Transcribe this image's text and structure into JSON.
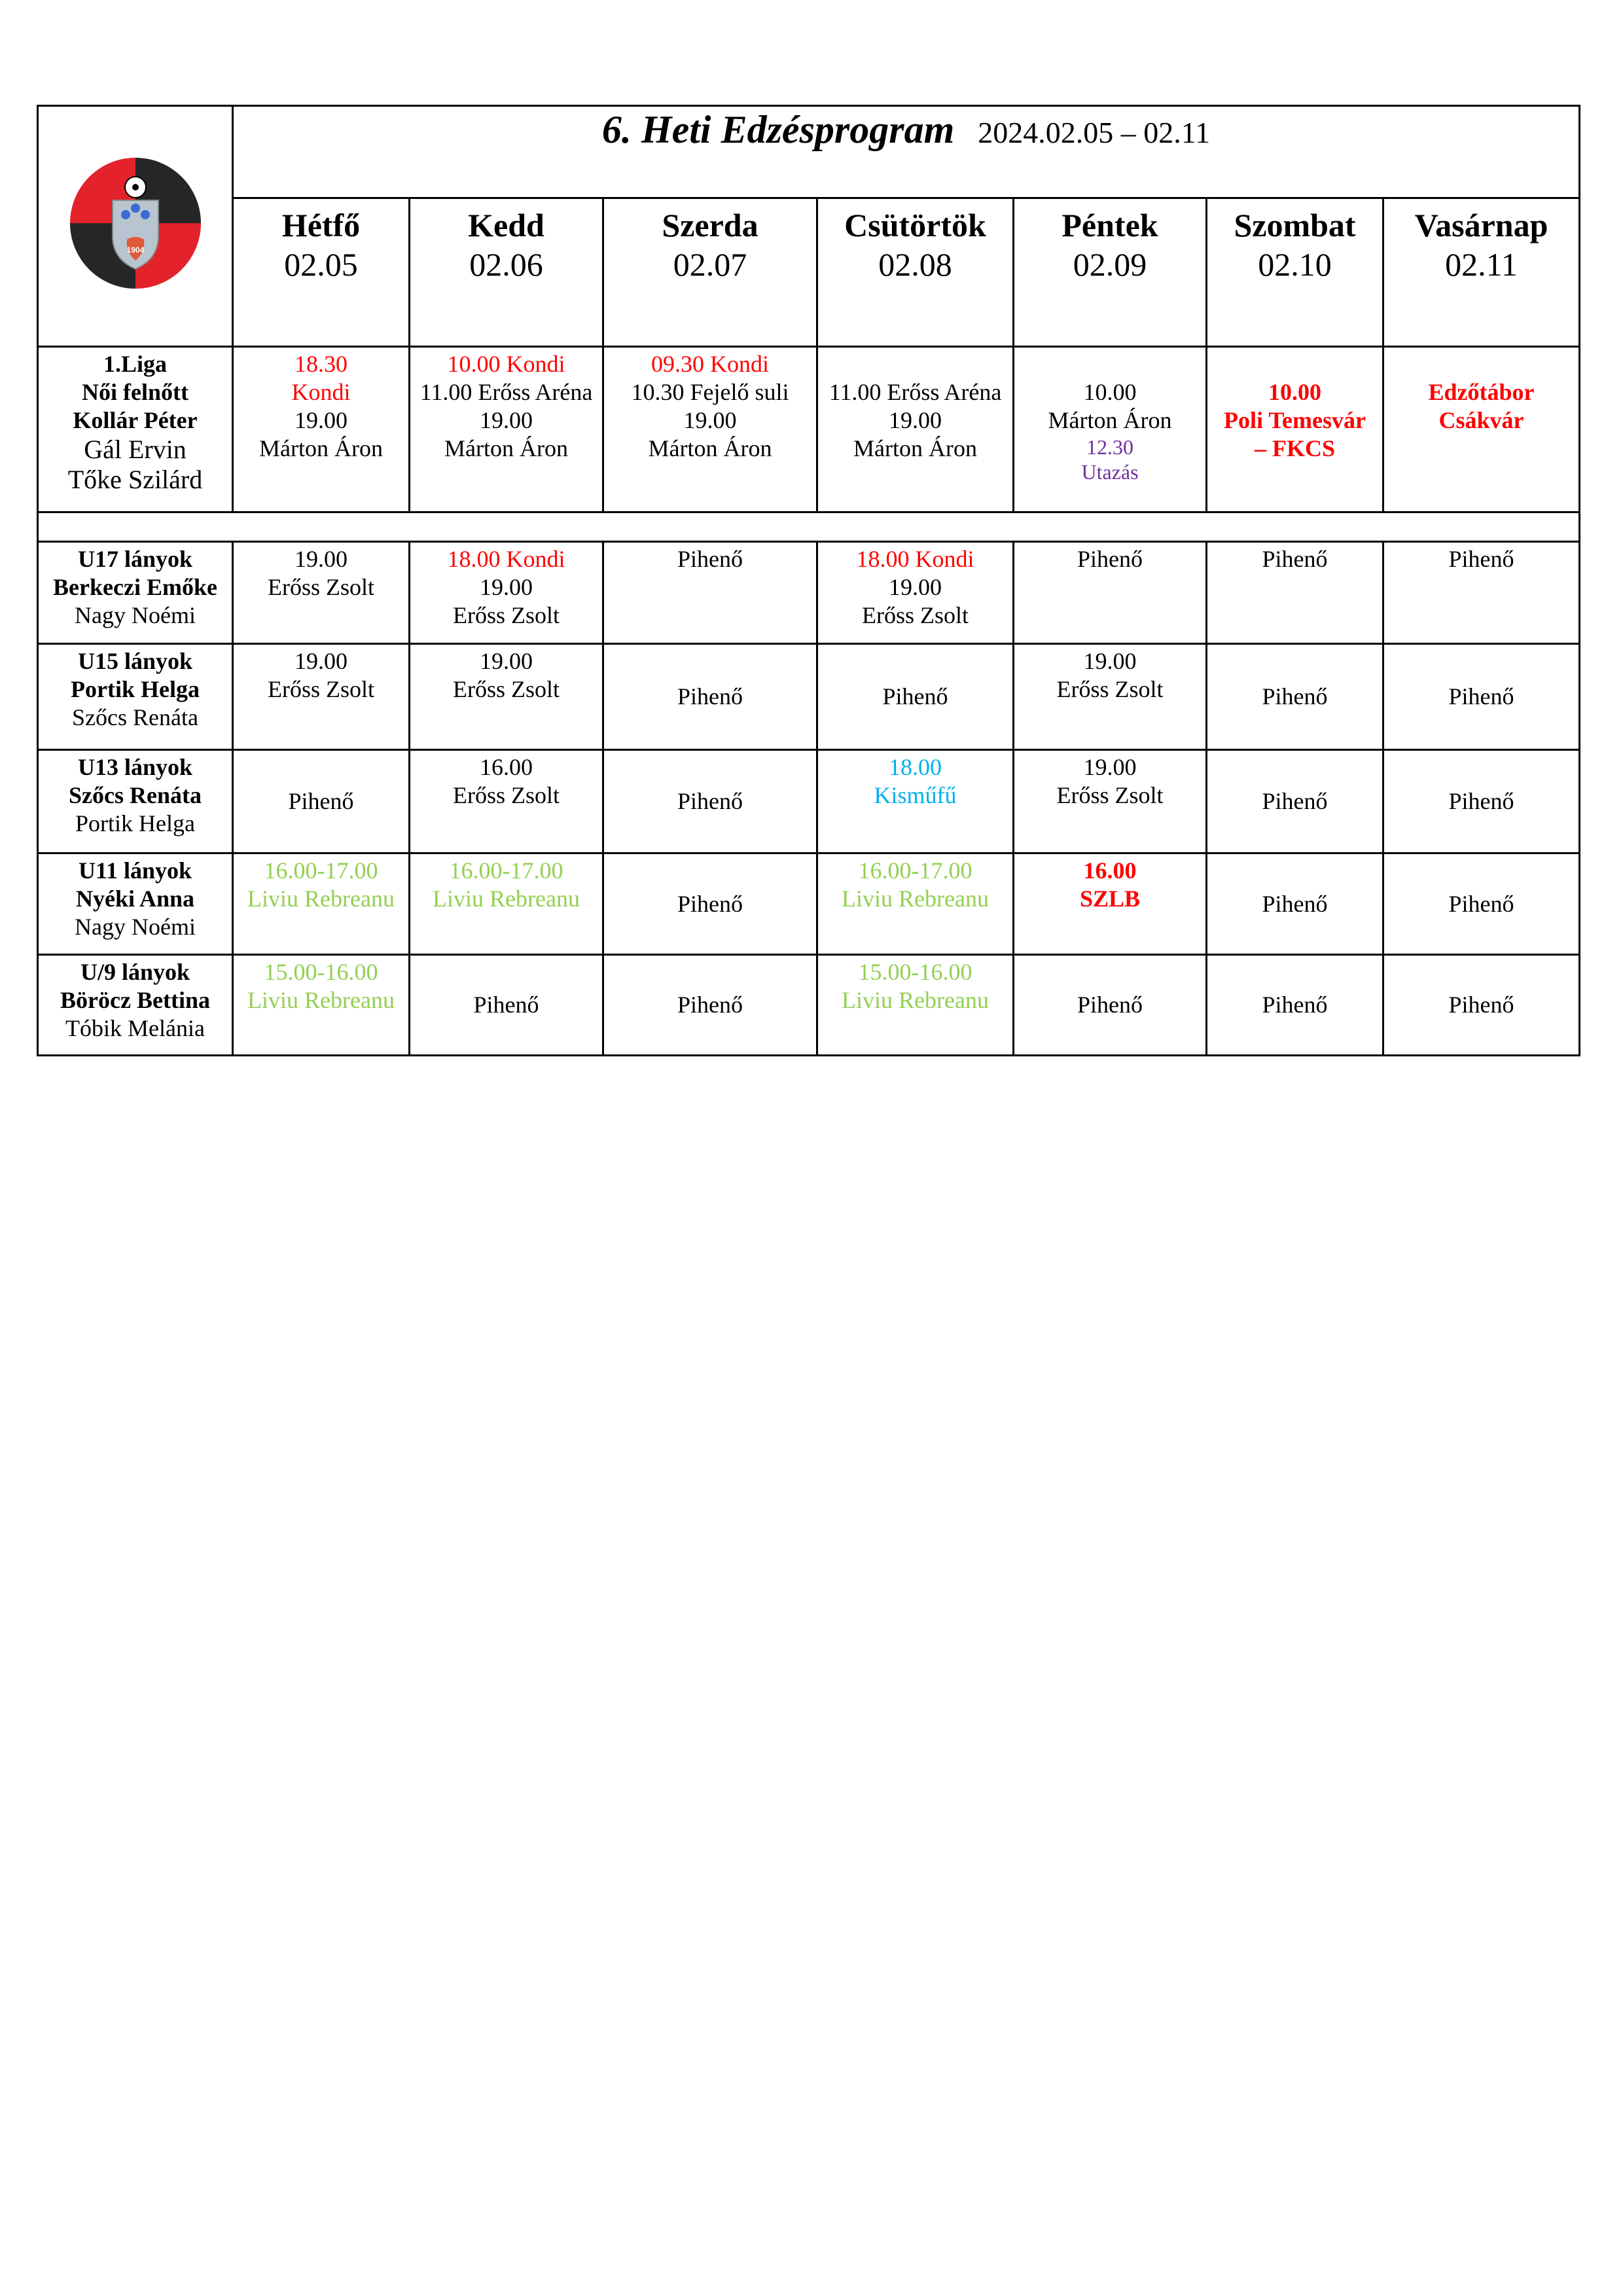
{
  "header": {
    "title": "6. Heti Edzésprogram",
    "date_range": "2024.02.05 – 02.11",
    "logo_text": "FUTBALL KLUB CSÍKSZEREDA 1904 FUTBALL KLUB MIERCUREACIUC"
  },
  "days": [
    {
      "name": "Hétfő",
      "date": "02.05"
    },
    {
      "name": "Kedd",
      "date": "02.06"
    },
    {
      "name": "Szerda",
      "date": "02.07"
    },
    {
      "name": "Csütörtök",
      "date": "02.08"
    },
    {
      "name": "Péntek",
      "date": "02.09"
    },
    {
      "name": "Szombat",
      "date": "02.10"
    },
    {
      "name": "Vasárnap",
      "date": "02.11"
    }
  ],
  "teams": [
    {
      "label": [
        "1.Liga",
        "Női felnőtt",
        "Kollár Péter",
        "Gál Ervin",
        "Tőke Szilárd"
      ],
      "cells": [
        [
          {
            "t": "18.30",
            "c": "red"
          },
          {
            "t": "Kondi",
            "c": "red"
          },
          {
            "t": "19.00"
          },
          {
            "t": "Márton Áron"
          }
        ],
        [
          {
            "t": "10.00 Kondi",
            "c": "red"
          },
          {
            "t": "11.00 Erőss Aréna"
          },
          {
            "t": "19.00"
          },
          {
            "t": "Márton Áron"
          }
        ],
        [
          {
            "t": "09.30 Kondi",
            "c": "red"
          },
          {
            "t": "10.30 Fejelő suli"
          },
          {
            "t": "19.00"
          },
          {
            "t": "Márton Áron"
          }
        ],
        [
          {
            "t": "11.00 Erőss Aréna"
          },
          {
            "t": "19.00"
          },
          {
            "t": "Márton Áron"
          }
        ],
        [
          {
            "t": "10.00"
          },
          {
            "t": "Márton Áron"
          },
          {
            "t": "12.30",
            "c": "purple"
          },
          {
            "t": "Utazás",
            "c": "purple"
          }
        ],
        [
          {
            "t": "10.00",
            "c": "red",
            "b": true
          },
          {
            "t": "Poli Temesvár",
            "c": "red",
            "b": true
          },
          {
            "t": "– FKCS",
            "c": "red",
            "b": true
          }
        ],
        [
          {
            "t": "Edzőtábor",
            "c": "red",
            "b": true
          },
          {
            "t": "Csákvár",
            "c": "red",
            "b": true
          }
        ]
      ]
    },
    {
      "label": [
        "U17 lányok",
        "Berkeczi Emőke",
        "Nagy Noémi"
      ],
      "cells": [
        [
          {
            "t": "19.00"
          },
          {
            "t": "Erőss Zsolt"
          }
        ],
        [
          {
            "t": "18.00 Kondi",
            "c": "red"
          },
          {
            "t": "19.00"
          },
          {
            "t": "Erőss Zsolt"
          }
        ],
        [
          {
            "t": "Pihenő"
          }
        ],
        [
          {
            "t": "18.00 Kondi",
            "c": "red"
          },
          {
            "t": "19.00"
          },
          {
            "t": "Erőss Zsolt"
          }
        ],
        [
          {
            "t": "Pihenő"
          }
        ],
        [
          {
            "t": "Pihenő"
          }
        ],
        [
          {
            "t": "Pihenő"
          }
        ]
      ]
    },
    {
      "label": [
        "U15 lányok",
        "Portik Helga",
        "Szőcs Renáta"
      ],
      "cells": [
        [
          {
            "t": "19.00"
          },
          {
            "t": "Erőss Zsolt"
          }
        ],
        [
          {
            "t": "19.00"
          },
          {
            "t": "Erőss Zsolt"
          }
        ],
        [
          {
            "t": "Pihenő"
          }
        ],
        [
          {
            "t": "Pihenő"
          }
        ],
        [
          {
            "t": "19.00"
          },
          {
            "t": "Erőss Zsolt"
          }
        ],
        [
          {
            "t": "Pihenő"
          }
        ],
        [
          {
            "t": "Pihenő"
          }
        ]
      ]
    },
    {
      "label": [
        "U13 lányok",
        "Szőcs Renáta",
        "Portik Helga"
      ],
      "cells": [
        [
          {
            "t": "Pihenő"
          }
        ],
        [
          {
            "t": "16.00"
          },
          {
            "t": "Erőss Zsolt"
          }
        ],
        [
          {
            "t": "Pihenő"
          }
        ],
        [
          {
            "t": "18.00",
            "c": "cyan"
          },
          {
            "t": "Kisműfű",
            "c": "cyan"
          }
        ],
        [
          {
            "t": "19.00"
          },
          {
            "t": "Erőss Zsolt"
          }
        ],
        [
          {
            "t": "Pihenő"
          }
        ],
        [
          {
            "t": "Pihenő"
          }
        ]
      ]
    },
    {
      "label": [
        "U11 lányok",
        "Nyéki Anna",
        "Nagy Noémi"
      ],
      "cells": [
        [
          {
            "t": "16.00-17.00",
            "c": "green"
          },
          {
            "t": "Liviu Rebreanu",
            "c": "green"
          }
        ],
        [
          {
            "t": "16.00-17.00",
            "c": "green"
          },
          {
            "t": "Liviu Rebreanu",
            "c": "green"
          }
        ],
        [
          {
            "t": "Pihenő"
          }
        ],
        [
          {
            "t": "16.00-17.00",
            "c": "green"
          },
          {
            "t": "Liviu Rebreanu",
            "c": "green"
          }
        ],
        [
          {
            "t": "16.00",
            "c": "red",
            "b": true
          },
          {
            "t": "SZLB",
            "c": "red",
            "b": true
          }
        ],
        [
          {
            "t": "Pihenő"
          }
        ],
        [
          {
            "t": "Pihenő"
          }
        ]
      ]
    },
    {
      "label": [
        "U/9 lányok",
        "Böröcz Bettina",
        "Tóbik Melánia"
      ],
      "cells": [
        [
          {
            "t": "15.00-16.00",
            "c": "green"
          },
          {
            "t": "Liviu Rebreanu",
            "c": "green"
          }
        ],
        [
          {
            "t": "Pihenő"
          }
        ],
        [
          {
            "t": "Pihenő"
          }
        ],
        [
          {
            "t": "15.00-16.00",
            "c": "green"
          },
          {
            "t": "Liviu Rebreanu",
            "c": "green"
          }
        ],
        [
          {
            "t": "Pihenő"
          }
        ],
        [
          {
            "t": "Pihenő"
          }
        ],
        [
          {
            "t": "Pihenő"
          }
        ]
      ]
    }
  ],
  "colors": {
    "red": "#ff0000",
    "green": "#92d050",
    "cyan": "#00b0f0",
    "purple": "#7030a0"
  }
}
